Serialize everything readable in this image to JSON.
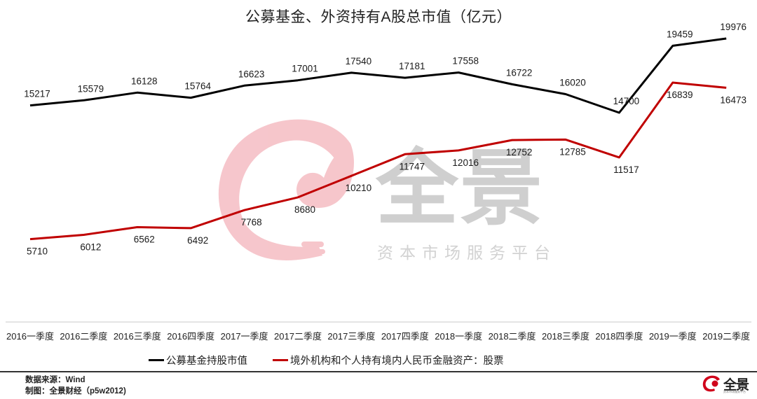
{
  "title": "公募基金、外资持有A股总市值（亿元）",
  "watermark": {
    "brand": "全景",
    "tagline": "资本市场服务平台",
    "swirl_color": "#f6c3c9"
  },
  "legend": [
    {
      "label": "公募基金持股市值",
      "color": "#000000"
    },
    {
      "label": "境外机构和个人持有境内人民币金融资产：股票",
      "color": "#c00000"
    }
  ],
  "footer": {
    "source": "数据来源：Wind",
    "author": "制图：全景财经（p5w2012)",
    "logo_text": "全景",
    "logo_sub": "资本市场服务平台"
  },
  "chart_data": {
    "type": "line",
    "title": "公募基金、外资持有A股总市值（亿元）",
    "xlabel": "",
    "ylabel": "",
    "ylim": [
      0,
      20000
    ],
    "grid": false,
    "legend_position": "bottom",
    "categories": [
      "2016一季度",
      "2016二季度",
      "2016三季度",
      "2016四季度",
      "2017一季度",
      "2017二季度",
      "2017三季度",
      "2017四季度",
      "2018一季度",
      "2018二季度",
      "2018三季度",
      "2018四季度",
      "2019一季度",
      "2019二季度"
    ],
    "series": [
      {
        "name": "公募基金持股市值",
        "color": "#000000",
        "values": [
          15217,
          15579,
          16128,
          15764,
          16623,
          17001,
          17540,
          17181,
          17558,
          16722,
          16020,
          14700,
          19459,
          19976
        ]
      },
      {
        "name": "境外机构和个人持有境内人民币金融资产：股票",
        "color": "#c00000",
        "values": [
          5710,
          6012,
          6562,
          6492,
          7768,
          8680,
          10210,
          11747,
          12016,
          12752,
          12785,
          11517,
          16839,
          16473
        ]
      }
    ]
  }
}
